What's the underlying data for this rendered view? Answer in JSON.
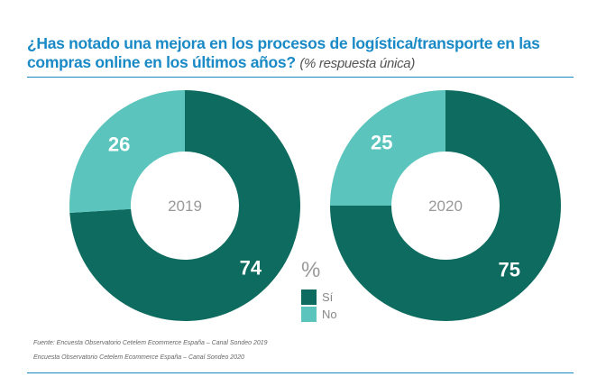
{
  "title": "¿Has notado una mejora en los procesos de logística/transporte en las compras online en los últimos años?",
  "subtitle": "(% respuesta única)",
  "colors": {
    "si": "#0e6b5f",
    "no": "#5bc4bc",
    "accent": "#1a8ac6"
  },
  "chart_data": [
    {
      "type": "pie",
      "donut": true,
      "center_label": "2019",
      "categories": [
        "Sí",
        "No"
      ],
      "values": [
        74,
        26
      ]
    },
    {
      "type": "pie",
      "donut": true,
      "center_label": "2020",
      "categories": [
        "Sí",
        "No"
      ],
      "values": [
        75,
        25
      ]
    }
  ],
  "legend": {
    "unit": "%",
    "items": [
      "Sí",
      "No"
    ]
  },
  "sources": [
    "Fuente: Encuesta Observatorio Cetelem Ecommerce España – Canal Sondeo 2019",
    "Encuesta Observatorio Cetelem Ecommerce España – Canal Sondeo 2020"
  ]
}
